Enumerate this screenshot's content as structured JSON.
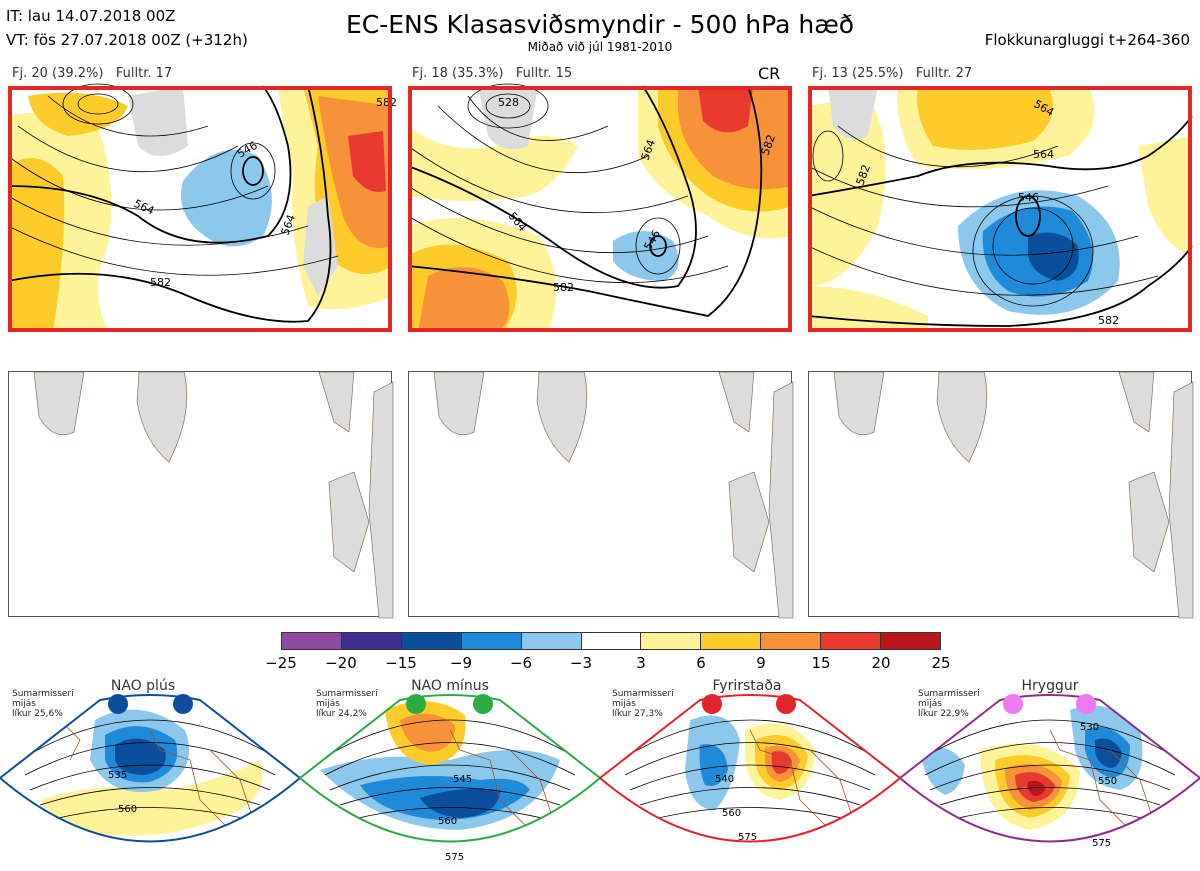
{
  "header": {
    "it_line": "IT: lau 14.07.2018 00Z",
    "vt_line": "VT: fös 27.07.2018 00Z  (+312h)",
    "title": "EC-ENS Klasasviðsmyndir - 500 hPa hæð",
    "subtitle": "Miðað við júl 1981-2010",
    "window": "Flokkunargluggi t+264-360"
  },
  "clusters": [
    {
      "label": "Fj. 20 (39.2%)   Fulltr. 17",
      "badge": "",
      "contours": [
        "546",
        "564",
        "582",
        "582",
        "564"
      ]
    },
    {
      "label": "Fj. 18 (35.3%)   Fulltr. 15",
      "badge": "CR",
      "contours": [
        "528",
        "546",
        "564",
        "582",
        "564",
        "582"
      ]
    },
    {
      "label": "Fj. 13 (25.5%)   Fulltr. 27",
      "badge": "",
      "contours": [
        "564",
        "564",
        "546",
        "582",
        "582"
      ]
    }
  ],
  "colorbar": {
    "colors": [
      "#8e4a9e",
      "#3d2f8f",
      "#0b4f9c",
      "#1f8ad8",
      "#8cc8ec",
      "#ffffff",
      "#fff39a",
      "#fdcc2a",
      "#f5923a",
      "#e83a2e",
      "#b8141b"
    ],
    "ticks": [
      "−25",
      "−20",
      "−15",
      "−9",
      "−6",
      "−3",
      "3",
      "6",
      "9",
      "15",
      "20",
      "25"
    ]
  },
  "regimes": [
    {
      "name": "NAO plús",
      "desc1": "Sumarmisseri",
      "desc2": "mijás",
      "desc3": "líkur 25,6%",
      "color": "#0b4f9c",
      "contours": [
        "535",
        "560"
      ]
    },
    {
      "name": "NAO mínus",
      "desc1": "Sumarmisseri",
      "desc2": "mijás",
      "desc3": "líkur 24,2%",
      "color": "#2bab43",
      "contours": [
        "545",
        "560",
        "575"
      ]
    },
    {
      "name": "Fyrirstaða",
      "desc1": "Sumarmisseri",
      "desc2": "mijás",
      "desc3": "líkur 27,3%",
      "color": "#e2242b",
      "contours": [
        "540",
        "560",
        "575"
      ]
    },
    {
      "name": "Hryggur",
      "desc1": "Sumarmisseri",
      "desc2": "mijás",
      "desc3": "líkur 22,9%",
      "color": "#8e2c8e",
      "contours": [
        "530",
        "550",
        "575"
      ]
    }
  ]
}
